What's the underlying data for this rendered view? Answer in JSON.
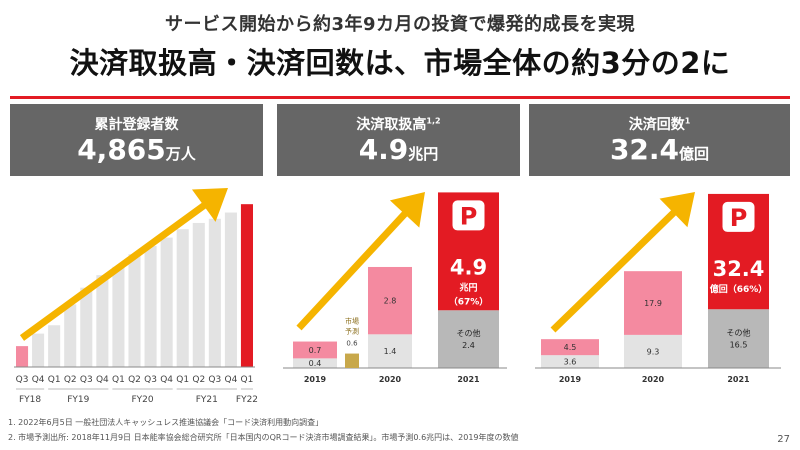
{
  "slide": {
    "subtitle": "サービス開始から約3年9カ月の投資で爆発的成長を実現",
    "title": "決済取扱高・決済回数は、市場全体の約3分の2に",
    "page_number": "27",
    "accent": "#e31b23"
  },
  "panels": [
    {
      "label": "累計登録者数",
      "sup": "",
      "value": "4,865",
      "unit": "万人"
    },
    {
      "label": "決済取扱高",
      "sup": "1,2",
      "value": "4.9",
      "unit": "兆円"
    },
    {
      "label": "決済回数",
      "sup": "1",
      "value": "32.4",
      "unit": "億回"
    }
  ],
  "footnotes": [
    "1.  2022年6月5日 一般社団法人キャッシュレス推進協議会「コード決済利用動向調査」",
    "2.  市場予測出所: 2018年11月9日 日本能率協会総合研究所「日本国内のQRコード決済市場調査結果」。市場予測0.6兆円は、2019年度の数値"
  ],
  "chart_data": [
    {
      "type": "bar",
      "title": "累計登録者数",
      "categories": [
        "Q3",
        "Q4",
        "Q1",
        "Q2",
        "Q3",
        "Q4",
        "Q1",
        "Q2",
        "Q3",
        "Q4",
        "Q1",
        "Q2",
        "Q3",
        "Q4",
        "Q1"
      ],
      "values": [
        5,
        8,
        10,
        15,
        19,
        22,
        24,
        27,
        29,
        31,
        33,
        34.5,
        35.5,
        37,
        39
      ],
      "unit": "relative",
      "highlight_last": true,
      "fiscal_years": [
        {
          "label": "FY18",
          "start": 0,
          "end": 1
        },
        {
          "label": "FY19",
          "start": 2,
          "end": 5
        },
        {
          "label": "FY20",
          "start": 6,
          "end": 9
        },
        {
          "label": "FY21",
          "start": 10,
          "end": 13
        },
        {
          "label": "FY22",
          "start": 14,
          "end": 14
        }
      ]
    },
    {
      "type": "stacked_bar",
      "title": "決済取扱高",
      "unit": "兆円",
      "categories": [
        "2019",
        "2020",
        "2021"
      ],
      "series": [
        {
          "name": "PayPay",
          "values": [
            0.7,
            2.8,
            4.9
          ]
        },
        {
          "name": "その他",
          "values": [
            0.4,
            1.4,
            2.4
          ]
        }
      ],
      "market_forecast": {
        "label": "市場予測",
        "value": 0.6
      },
      "paypay_label": "4.9",
      "paypay_unit": "兆円",
      "share_label": "（67%）",
      "other_name": "その他",
      "other_value_label": "2.4"
    },
    {
      "type": "stacked_bar",
      "title": "決済回数",
      "unit": "億回",
      "categories": [
        "2019",
        "2020",
        "2021"
      ],
      "series": [
        {
          "name": "PayPay",
          "values": [
            4.5,
            17.9,
            32.4
          ]
        },
        {
          "name": "その他",
          "values": [
            3.6,
            9.3,
            16.5
          ]
        }
      ],
      "paypay_label": "32.4",
      "paypay_unit_share": "億回（66%）",
      "other_name": "その他",
      "other_value_label": "16.5"
    }
  ]
}
